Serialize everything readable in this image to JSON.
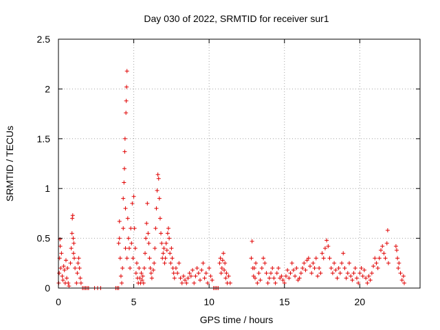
{
  "chart_data": {
    "type": "scatter",
    "title": "Day 030 of 2022, SRMTID for receiver sur1",
    "xlabel": "GPS time / hours",
    "ylabel": "SRMTID / TECUs",
    "xlim": [
      0,
      24
    ],
    "ylim": [
      0,
      2.5
    ],
    "grid": true,
    "marker": "+",
    "color": "#e00000",
    "x_ticks": [
      0,
      5,
      10,
      15,
      20
    ],
    "x_tick_labels": [
      "0",
      "5",
      "10",
      "15",
      "20"
    ],
    "y_ticks": [
      0,
      0.5,
      1,
      1.5,
      2,
      2.5
    ],
    "y_tick_labels": [
      "0",
      "0.5",
      "1",
      "1.5",
      "2",
      "2.5"
    ],
    "series": [
      {
        "name": "sur1",
        "points": [
          [
            0.02,
            0.05
          ],
          [
            0.05,
            0.15
          ],
          [
            0.08,
            0.3
          ],
          [
            0.1,
            0.49
          ],
          [
            0.12,
            0.42
          ],
          [
            0.15,
            0.2
          ],
          [
            0.2,
            0.35
          ],
          [
            0.25,
            0.12
          ],
          [
            0.3,
            0.08
          ],
          [
            0.35,
            0.22
          ],
          [
            0.4,
            0.18
          ],
          [
            0.45,
            0.05
          ],
          [
            0.5,
            0.28
          ],
          [
            0.55,
            0.1
          ],
          [
            0.6,
            0.2
          ],
          [
            0.65,
            0.05
          ],
          [
            0.7,
            0.02
          ],
          [
            0.8,
            0.25
          ],
          [
            0.85,
            0.4
          ],
          [
            0.9,
            0.55
          ],
          [
            0.92,
            0.7
          ],
          [
            0.95,
            0.73
          ],
          [
            0.98,
            0.5
          ],
          [
            1.0,
            0.35
          ],
          [
            1.02,
            0.45
          ],
          [
            1.05,
            0.3
          ],
          [
            1.1,
            0.2
          ],
          [
            1.2,
            0.05
          ],
          [
            1.25,
            0.15
          ],
          [
            1.3,
            0.25
          ],
          [
            1.35,
            0.3
          ],
          [
            1.4,
            0.2
          ],
          [
            1.45,
            0.1
          ],
          [
            1.5,
            0.05
          ],
          [
            1.6,
            0.0
          ],
          [
            1.7,
            0.0
          ],
          [
            1.8,
            0.0
          ],
          [
            1.9,
            0.0
          ],
          [
            2.0,
            0.0
          ],
          [
            2.4,
            0.0
          ],
          [
            2.6,
            0.0
          ],
          [
            2.8,
            0.0
          ],
          [
            3.8,
            0.0
          ],
          [
            3.9,
            0.0
          ],
          [
            4.0,
            0.0
          ],
          [
            4.0,
            0.45
          ],
          [
            4.05,
            0.5
          ],
          [
            4.05,
            0.67
          ],
          [
            4.1,
            0.3
          ],
          [
            4.15,
            0.12
          ],
          [
            4.2,
            0.05
          ],
          [
            4.25,
            0.2
          ],
          [
            4.3,
            0.6
          ],
          [
            4.3,
            0.9
          ],
          [
            4.35,
            1.06
          ],
          [
            4.38,
            1.2
          ],
          [
            4.4,
            1.37
          ],
          [
            4.42,
            1.5
          ],
          [
            4.45,
            0.4
          ],
          [
            4.45,
            0.8
          ],
          [
            4.48,
            1.76
          ],
          [
            4.5,
            1.88
          ],
          [
            4.52,
            2.02
          ],
          [
            4.55,
            2.18
          ],
          [
            4.55,
            0.3
          ],
          [
            4.6,
            0.7
          ],
          [
            4.65,
            0.5
          ],
          [
            4.7,
            0.4
          ],
          [
            4.75,
            0.2
          ],
          [
            4.8,
            0.6
          ],
          [
            4.85,
            0.45
          ],
          [
            4.9,
            0.85
          ],
          [
            4.95,
            0.3
          ],
          [
            5.0,
            0.92
          ],
          [
            5.05,
            0.6
          ],
          [
            5.1,
            0.4
          ],
          [
            5.15,
            0.15
          ],
          [
            5.2,
            0.25
          ],
          [
            5.25,
            0.1
          ],
          [
            5.3,
            0.05
          ],
          [
            5.35,
            0.2
          ],
          [
            5.4,
            0.1
          ],
          [
            5.45,
            0.05
          ],
          [
            5.5,
            0.15
          ],
          [
            5.55,
            0.08
          ],
          [
            5.6,
            0.12
          ],
          [
            5.65,
            0.05
          ],
          [
            5.7,
            0.2
          ],
          [
            5.75,
            0.35
          ],
          [
            5.8,
            0.5
          ],
          [
            5.85,
            0.65
          ],
          [
            5.9,
            0.85
          ],
          [
            5.95,
            0.55
          ],
          [
            6.0,
            0.45
          ],
          [
            6.05,
            0.3
          ],
          [
            6.1,
            0.2
          ],
          [
            6.15,
            0.15
          ],
          [
            6.2,
            0.1
          ],
          [
            6.3,
            0.18
          ],
          [
            6.35,
            0.25
          ],
          [
            6.4,
            0.4
          ],
          [
            6.45,
            0.6
          ],
          [
            6.5,
            0.8
          ],
          [
            6.55,
            0.98
          ],
          [
            6.6,
            1.14
          ],
          [
            6.65,
            1.1
          ],
          [
            6.7,
            0.9
          ],
          [
            6.75,
            0.7
          ],
          [
            6.8,
            0.55
          ],
          [
            6.85,
            0.45
          ],
          [
            6.9,
            0.3
          ],
          [
            6.95,
            0.35
          ],
          [
            7.0,
            0.4
          ],
          [
            7.05,
            0.25
          ],
          [
            7.1,
            0.3
          ],
          [
            7.15,
            0.45
          ],
          [
            7.2,
            0.38
          ],
          [
            7.25,
            0.55
          ],
          [
            7.3,
            0.6
          ],
          [
            7.35,
            0.5
          ],
          [
            7.4,
            0.35
          ],
          [
            7.45,
            0.25
          ],
          [
            7.5,
            0.4
          ],
          [
            7.55,
            0.3
          ],
          [
            7.6,
            0.2
          ],
          [
            7.65,
            0.15
          ],
          [
            7.7,
            0.1
          ],
          [
            7.8,
            0.2
          ],
          [
            7.9,
            0.15
          ],
          [
            8.0,
            0.25
          ],
          [
            8.1,
            0.1
          ],
          [
            8.2,
            0.05
          ],
          [
            8.3,
            0.12
          ],
          [
            8.4,
            0.08
          ],
          [
            8.5,
            0.05
          ],
          [
            8.6,
            0.1
          ],
          [
            8.7,
            0.15
          ],
          [
            8.8,
            0.12
          ],
          [
            8.9,
            0.18
          ],
          [
            9.0,
            0.05
          ],
          [
            9.1,
            0.12
          ],
          [
            9.2,
            0.2
          ],
          [
            9.3,
            0.15
          ],
          [
            9.4,
            0.08
          ],
          [
            9.5,
            0.18
          ],
          [
            9.6,
            0.25
          ],
          [
            9.7,
            0.1
          ],
          [
            9.8,
            0.15
          ],
          [
            9.9,
            0.05
          ],
          [
            10.0,
            0.2
          ],
          [
            10.1,
            0.12
          ],
          [
            10.2,
            0.08
          ],
          [
            10.3,
            0.0
          ],
          [
            10.4,
            0.0
          ],
          [
            10.5,
            0.0
          ],
          [
            10.6,
            0.0
          ],
          [
            10.7,
            0.25
          ],
          [
            10.75,
            0.3
          ],
          [
            10.8,
            0.15
          ],
          [
            10.85,
            0.2
          ],
          [
            10.9,
            0.28
          ],
          [
            10.95,
            0.35
          ],
          [
            11.0,
            0.18
          ],
          [
            11.05,
            0.25
          ],
          [
            11.1,
            0.1
          ],
          [
            11.15,
            0.15
          ],
          [
            11.2,
            0.05
          ],
          [
            11.3,
            0.12
          ],
          [
            11.4,
            0.05
          ],
          [
            12.8,
            0.3
          ],
          [
            12.85,
            0.47
          ],
          [
            12.9,
            0.2
          ],
          [
            12.95,
            0.12
          ],
          [
            13.0,
            0.2
          ],
          [
            13.05,
            0.1
          ],
          [
            13.1,
            0.25
          ],
          [
            13.2,
            0.05
          ],
          [
            13.3,
            0.15
          ],
          [
            13.4,
            0.08
          ],
          [
            13.5,
            0.2
          ],
          [
            13.6,
            0.3
          ],
          [
            13.7,
            0.25
          ],
          [
            13.8,
            0.15
          ],
          [
            13.9,
            0.05
          ],
          [
            14.0,
            0.1
          ],
          [
            14.1,
            0.15
          ],
          [
            14.2,
            0.2
          ],
          [
            14.3,
            0.1
          ],
          [
            14.4,
            0.05
          ],
          [
            14.5,
            0.15
          ],
          [
            14.6,
            0.2
          ],
          [
            14.7,
            0.1
          ],
          [
            14.8,
            0.12
          ],
          [
            14.9,
            0.08
          ],
          [
            15.0,
            0.05
          ],
          [
            15.1,
            0.12
          ],
          [
            15.2,
            0.18
          ],
          [
            15.3,
            0.1
          ],
          [
            15.4,
            0.15
          ],
          [
            15.5,
            0.25
          ],
          [
            15.6,
            0.18
          ],
          [
            15.7,
            0.12
          ],
          [
            15.8,
            0.2
          ],
          [
            15.9,
            0.08
          ],
          [
            16.0,
            0.1
          ],
          [
            16.1,
            0.15
          ],
          [
            16.2,
            0.2
          ],
          [
            16.3,
            0.25
          ],
          [
            16.4,
            0.18
          ],
          [
            16.5,
            0.28
          ],
          [
            16.6,
            0.3
          ],
          [
            16.7,
            0.22
          ],
          [
            16.8,
            0.15
          ],
          [
            16.9,
            0.25
          ],
          [
            17.0,
            0.2
          ],
          [
            17.1,
            0.3
          ],
          [
            17.2,
            0.12
          ],
          [
            17.3,
            0.2
          ],
          [
            17.4,
            0.15
          ],
          [
            17.5,
            0.35
          ],
          [
            17.6,
            0.3
          ],
          [
            17.7,
            0.4
          ],
          [
            17.8,
            0.48
          ],
          [
            17.9,
            0.42
          ],
          [
            18.0,
            0.3
          ],
          [
            18.1,
            0.2
          ],
          [
            18.2,
            0.15
          ],
          [
            18.3,
            0.25
          ],
          [
            18.4,
            0.18
          ],
          [
            18.5,
            0.1
          ],
          [
            18.6,
            0.2
          ],
          [
            18.7,
            0.15
          ],
          [
            18.8,
            0.25
          ],
          [
            18.9,
            0.35
          ],
          [
            19.0,
            0.2
          ],
          [
            19.1,
            0.1
          ],
          [
            19.2,
            0.15
          ],
          [
            19.3,
            0.25
          ],
          [
            19.4,
            0.12
          ],
          [
            19.5,
            0.08
          ],
          [
            19.6,
            0.15
          ],
          [
            19.7,
            0.2
          ],
          [
            19.8,
            0.1
          ],
          [
            19.9,
            0.05
          ],
          [
            20.0,
            0.15
          ],
          [
            20.1,
            0.2
          ],
          [
            20.2,
            0.12
          ],
          [
            20.3,
            0.18
          ],
          [
            20.4,
            0.1
          ],
          [
            20.5,
            0.05
          ],
          [
            20.6,
            0.12
          ],
          [
            20.7,
            0.08
          ],
          [
            20.8,
            0.15
          ],
          [
            20.9,
            0.22
          ],
          [
            21.0,
            0.3
          ],
          [
            21.1,
            0.25
          ],
          [
            21.2,
            0.2
          ],
          [
            21.3,
            0.3
          ],
          [
            21.4,
            0.38
          ],
          [
            21.5,
            0.42
          ],
          [
            21.6,
            0.35
          ],
          [
            21.7,
            0.3
          ],
          [
            21.8,
            0.45
          ],
          [
            21.85,
            0.58
          ],
          [
            21.9,
            0.25
          ],
          [
            22.4,
            0.42
          ],
          [
            22.45,
            0.38
          ],
          [
            22.5,
            0.3
          ],
          [
            22.55,
            0.2
          ],
          [
            22.6,
            0.25
          ],
          [
            22.7,
            0.15
          ],
          [
            22.8,
            0.08
          ],
          [
            22.9,
            0.12
          ],
          [
            22.95,
            0.05
          ]
        ]
      }
    ]
  }
}
